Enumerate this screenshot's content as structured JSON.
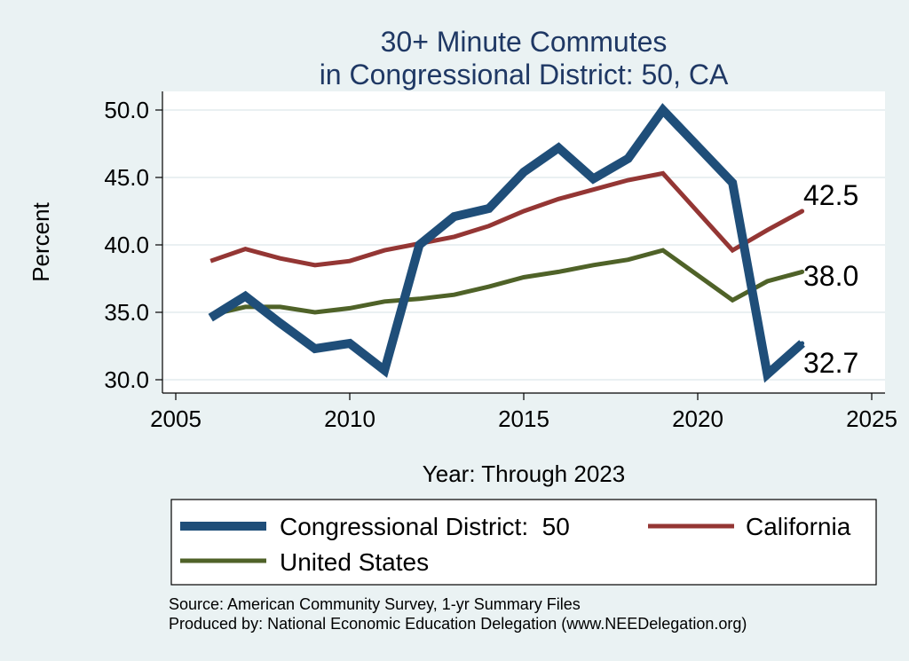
{
  "chart_data": {
    "type": "line",
    "title_lines": [
      "30+ Minute Commutes",
      "in Congressional District:  50, CA"
    ],
    "xlabel": "Year: Through 2023",
    "ylabel": "Percent",
    "xlim": [
      2005,
      2025
    ],
    "ylim": [
      30,
      50
    ],
    "xticks": [
      2005,
      2010,
      2015,
      2020,
      2025
    ],
    "yticks": [
      30,
      35,
      40,
      45,
      50
    ],
    "ytick_labels": [
      "30.0",
      "35.0",
      "40.0",
      "45.0",
      "50.0"
    ],
    "grid": true,
    "legend_position": "bottom",
    "x": [
      2006,
      2007,
      2008,
      2009,
      2010,
      2011,
      2012,
      2013,
      2014,
      2015,
      2016,
      2017,
      2018,
      2019,
      2021,
      2022,
      2023
    ],
    "series": [
      {
        "name": "Congressional District:  50",
        "color": "#1f4e79",
        "values": [
          34.6,
          36.2,
          34.2,
          32.3,
          32.7,
          30.7,
          40.0,
          42.1,
          42.7,
          45.4,
          47.2,
          44.9,
          46.4,
          50.0,
          44.6,
          30.4,
          32.7
        ],
        "end_label": "32.7"
      },
      {
        "name": "California",
        "color": "#943634",
        "values": [
          38.8,
          39.7,
          39.0,
          38.5,
          38.8,
          39.6,
          40.1,
          40.6,
          41.4,
          42.5,
          43.4,
          44.1,
          44.8,
          45.3,
          39.6,
          41.1,
          42.5
        ],
        "end_label": "42.5"
      },
      {
        "name": "United States",
        "color": "#4f6228",
        "values": [
          34.8,
          35.4,
          35.4,
          35.0,
          35.3,
          35.8,
          36.0,
          36.3,
          36.9,
          37.6,
          38.0,
          38.5,
          38.9,
          39.6,
          35.9,
          37.3,
          38.0
        ],
        "end_label": "38.0"
      }
    ],
    "source_lines": [
      "Source: American Community Survey, 1-yr Summary Files",
      "Produced by: National Economic Education Delegation (www.NEEDelegation.org)"
    ]
  }
}
